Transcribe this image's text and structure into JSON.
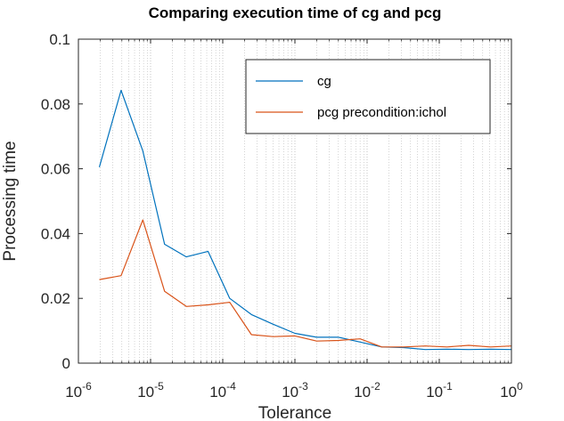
{
  "chart_data": {
    "type": "line",
    "title": "Comparing execution time of cg and pcg",
    "xlabel": "Tolerance",
    "ylabel": "Processing time",
    "xscale": "log",
    "xlim": [
      1e-06,
      1
    ],
    "ylim": [
      0,
      0.1
    ],
    "grid": "log-x minor dotted",
    "legend_position": "top-right",
    "x_tick_labels": [
      {
        "base": "10",
        "exp": "-6"
      },
      {
        "base": "10",
        "exp": "-5"
      },
      {
        "base": "10",
        "exp": "-4"
      },
      {
        "base": "10",
        "exp": "-3"
      },
      {
        "base": "10",
        "exp": "-2"
      },
      {
        "base": "10",
        "exp": "-1"
      },
      {
        "base": "10",
        "exp": "0"
      }
    ],
    "y_tick_labels": [
      "0",
      "0.02",
      "0.04",
      "0.06",
      "0.08",
      "0.1"
    ],
    "y_ticks": [
      0,
      0.02,
      0.04,
      0.06,
      0.08,
      0.1
    ],
    "x": [
      1.953e-06,
      3.906e-06,
      7.813e-06,
      1.5625e-05,
      3.125e-05,
      6.25e-05,
      0.000125,
      0.00025,
      0.0005,
      0.001,
      0.002,
      0.004,
      0.008,
      0.016,
      0.032,
      0.064,
      0.128,
      0.256,
      0.512,
      1.0
    ],
    "series": [
      {
        "name": "cg",
        "color": "#0072BD",
        "values": [
          0.0605,
          0.0842,
          0.0655,
          0.0367,
          0.0328,
          0.0345,
          0.02,
          0.015,
          0.012,
          0.0092,
          0.008,
          0.008,
          0.0065,
          0.005,
          0.0048,
          0.0042,
          0.0043,
          0.0042,
          0.0043,
          0.0042
        ]
      },
      {
        "name": "pcg precondition:ichol",
        "color": "#D95319",
        "values": [
          0.0258,
          0.027,
          0.0442,
          0.0222,
          0.0175,
          0.018,
          0.0188,
          0.0088,
          0.0082,
          0.0084,
          0.0068,
          0.007,
          0.0075,
          0.005,
          0.005,
          0.0053,
          0.005,
          0.0055,
          0.005,
          0.0053
        ]
      }
    ]
  }
}
